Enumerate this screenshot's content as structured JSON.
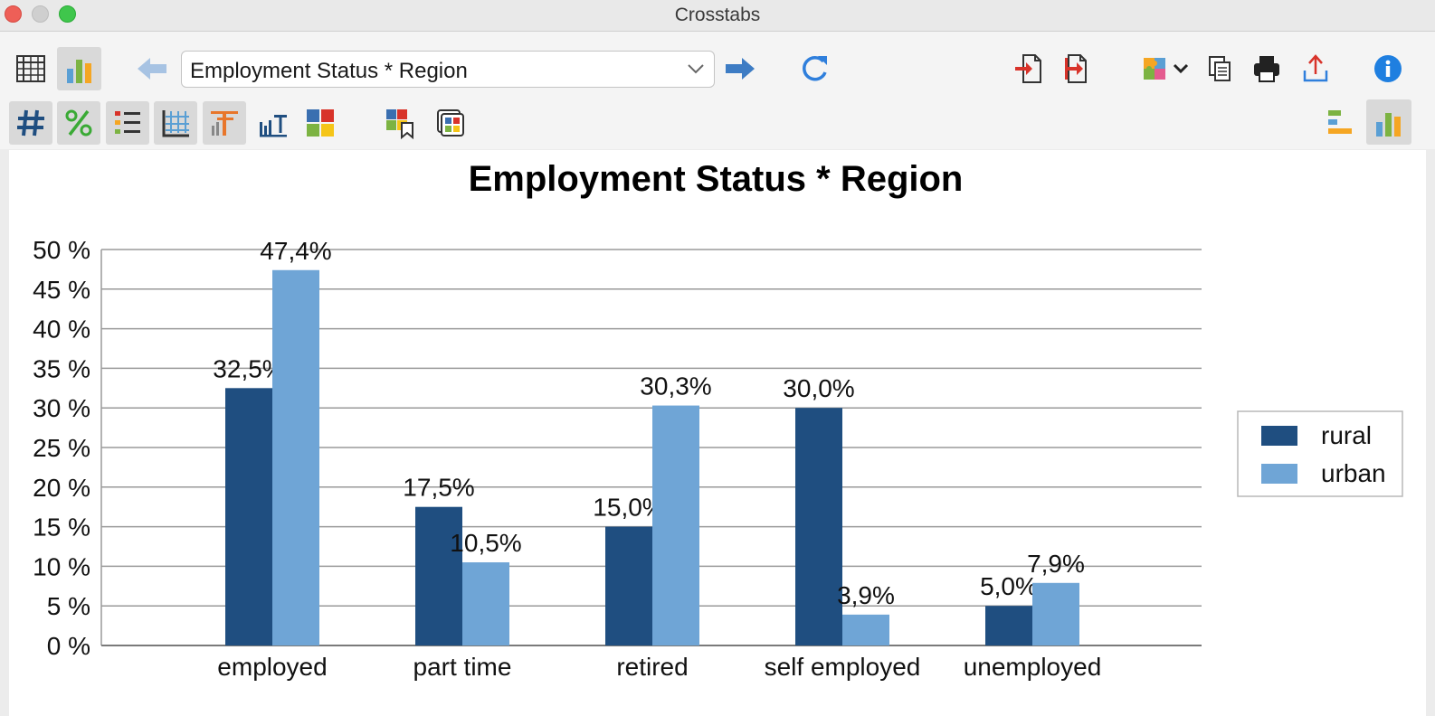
{
  "window": {
    "title": "Crosstabs"
  },
  "toolbar": {
    "combo_value": "Employment Status * Region",
    "icons": {
      "table_view": "table-grid-icon",
      "chart_view": "bar-chart-icon",
      "back": "arrow-left-icon",
      "forward": "arrow-right-icon",
      "refresh": "refresh-icon",
      "import": "import-icon",
      "export_doc": "export-icon",
      "plugins": "puzzle-icon",
      "copy": "copy-icon",
      "print": "print-icon",
      "share": "share-icon",
      "info": "info-icon",
      "counts": "hash-icon",
      "percent": "percent-icon",
      "list": "list-icon",
      "grid_settings": "grid-table-icon",
      "chart_title": "chart-title-icon",
      "chart_labels": "chart-labels-icon",
      "color_palette": "color-squares-icon",
      "save_colors": "color-bookmark-icon",
      "copy_chart": "copy-chart-icon",
      "horizontal_bars": "horizontal-bar-icon",
      "vertical_bars": "vertical-bar-icon"
    }
  },
  "colors": {
    "rural": "#1f4e80",
    "urban": "#6fa5d6",
    "accent_red": "#d8332a",
    "accent_blue": "#2f7fdc"
  },
  "chart_data": {
    "type": "bar",
    "title": "Employment Status * Region",
    "categories": [
      "employed",
      "part time",
      "retired",
      "self employed",
      "unemployed"
    ],
    "series": [
      {
        "name": "rural",
        "values": [
          32.5,
          17.5,
          15.0,
          30.0,
          5.0
        ],
        "labels": [
          "32,5%",
          "17,5%",
          "15,0%",
          "30,0%",
          "5,0%"
        ]
      },
      {
        "name": "urban",
        "values": [
          47.4,
          10.5,
          30.3,
          3.9,
          7.9
        ],
        "labels": [
          "47,4%",
          "10,5%",
          "30,3%",
          "3,9%",
          "7,9%"
        ]
      }
    ],
    "ylim": [
      0,
      50
    ],
    "yticks": [
      0,
      5,
      10,
      15,
      20,
      25,
      30,
      35,
      40,
      45,
      50
    ],
    "ytick_labels": [
      "0 %",
      "5 %",
      "10 %",
      "15 %",
      "20 %",
      "25 %",
      "30 %",
      "35 %",
      "40 %",
      "45 %",
      "50 %"
    ],
    "grid": true,
    "legend_position": "right"
  }
}
